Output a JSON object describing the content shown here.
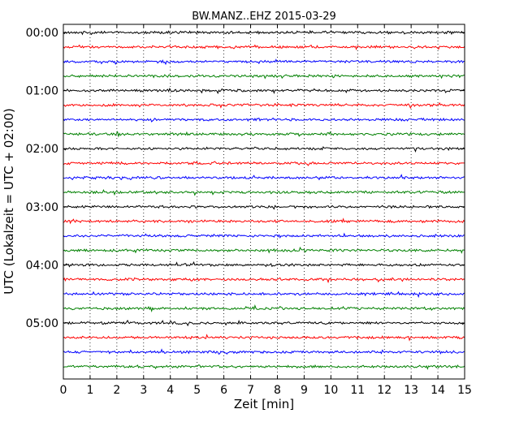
{
  "chart_data": {
    "type": "line",
    "title": "BW.MANZ..EHZ 2015-03-29",
    "xlabel": "Zeit  [min]",
    "ylabel": "UTC (Lokalzeit = UTC + 02:00)",
    "xlim": [
      0,
      15
    ],
    "x_ticks": [
      "0",
      "1",
      "2",
      "3",
      "4",
      "5",
      "6",
      "7",
      "8",
      "9",
      "10",
      "11",
      "12",
      "13",
      "14",
      "15"
    ],
    "y_ticks": [
      "00:00",
      "01:00",
      "02:00",
      "03:00",
      "04:00",
      "05:00"
    ],
    "grid": "vertical dotted",
    "trace_interval_minutes": 15,
    "trace_count": 24,
    "trace_colors": [
      "#000000",
      "#ff0000",
      "#0000ff",
      "#008000"
    ],
    "series": [
      {
        "start": "00:00",
        "color": "#000000"
      },
      {
        "start": "00:15",
        "color": "#ff0000"
      },
      {
        "start": "00:30",
        "color": "#0000ff"
      },
      {
        "start": "00:45",
        "color": "#008000"
      },
      {
        "start": "01:00",
        "color": "#000000"
      },
      {
        "start": "01:15",
        "color": "#ff0000"
      },
      {
        "start": "01:30",
        "color": "#0000ff"
      },
      {
        "start": "01:45",
        "color": "#008000"
      },
      {
        "start": "02:00",
        "color": "#000000"
      },
      {
        "start": "02:15",
        "color": "#ff0000"
      },
      {
        "start": "02:30",
        "color": "#0000ff"
      },
      {
        "start": "02:45",
        "color": "#008000"
      },
      {
        "start": "03:00",
        "color": "#000000"
      },
      {
        "start": "03:15",
        "color": "#ff0000"
      },
      {
        "start": "03:30",
        "color": "#0000ff"
      },
      {
        "start": "03:45",
        "color": "#008000"
      },
      {
        "start": "04:00",
        "color": "#000000"
      },
      {
        "start": "04:15",
        "color": "#ff0000"
      },
      {
        "start": "04:30",
        "color": "#0000ff"
      },
      {
        "start": "04:45",
        "color": "#008000"
      },
      {
        "start": "05:00",
        "color": "#000000"
      },
      {
        "start": "05:15",
        "color": "#ff0000"
      },
      {
        "start": "05:30",
        "color": "#0000ff"
      },
      {
        "start": "05:45",
        "color": "#008000"
      }
    ]
  }
}
